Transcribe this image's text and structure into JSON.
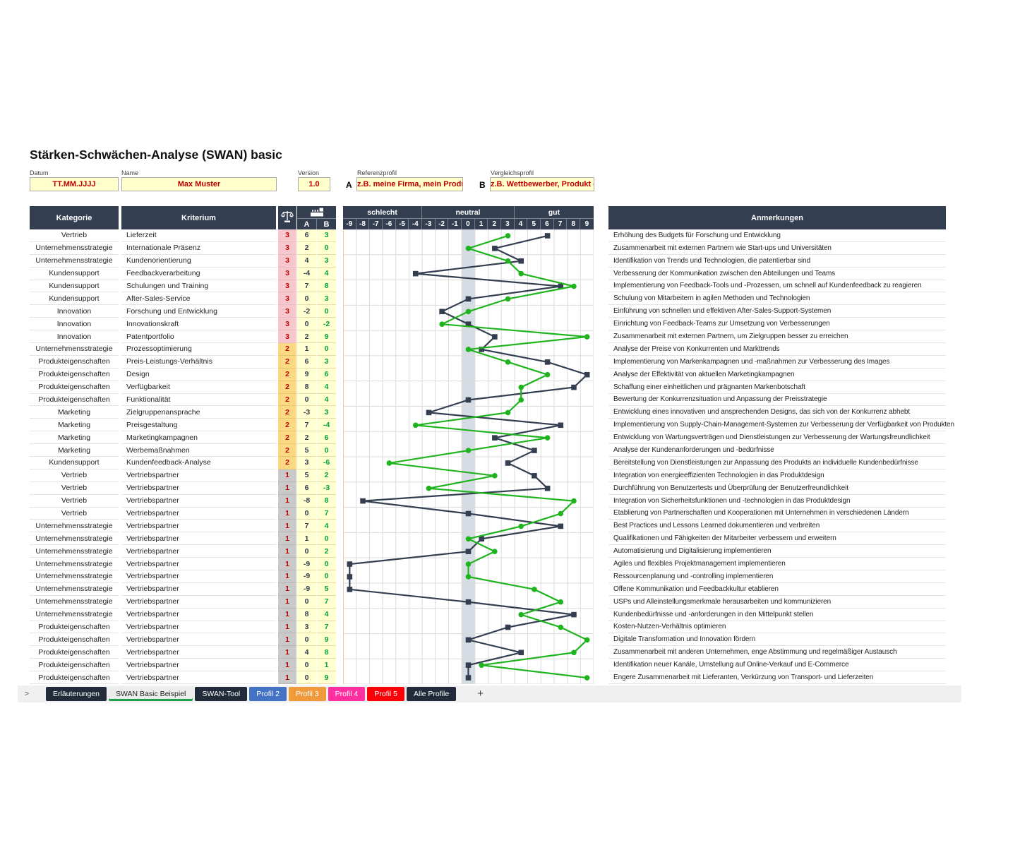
{
  "title": "Stärken-Schwächen-Analyse (SWAN) basic",
  "form": {
    "datum": {
      "label": "Datum",
      "value": "TT.MM.JJJJ"
    },
    "name": {
      "label": "Name",
      "value": "Max Muster"
    },
    "version": {
      "label": "Version",
      "value": "1.0"
    },
    "referenzprofil": {
      "label": "Referenzprofil",
      "prefix": "A",
      "value": "z.B. meine Firma, mein Produkt"
    },
    "vergleichsprofil": {
      "label": "Vergleichsprofil",
      "prefix": "B",
      "value": "z.B. Wettbewerber, Produkt etc."
    }
  },
  "table": {
    "headers": {
      "kategorie": "Kategorie",
      "kriterium": "Kriterium",
      "gewicht_icon": "balance-scale-icon",
      "profil_icon": "factory-icon",
      "a": "A",
      "b": "B",
      "anmerkungen": "Anmerkungen"
    },
    "scale": {
      "zones": [
        {
          "label": "schlecht",
          "cols": 6
        },
        {
          "label": "neutral",
          "cols": 7
        },
        {
          "label": "gut",
          "cols": 6
        }
      ],
      "ticks": [
        -9,
        -8,
        -7,
        -6,
        -5,
        -4,
        -3,
        -2,
        -1,
        0,
        1,
        2,
        3,
        4,
        5,
        6,
        7,
        8,
        9
      ]
    },
    "rows": [
      {
        "kategorie": "Vertrieb",
        "kriterium": "Lieferzeit",
        "gewicht": 3,
        "a": 6,
        "b": 3,
        "anmerkung": "Erhöhung des Budgets für Forschung und Entwicklung"
      },
      {
        "kategorie": "Unternehmensstrategie",
        "kriterium": "Internationale Präsenz",
        "gewicht": 3,
        "a": 2,
        "b": 0,
        "anmerkung": "Zusammenarbeit mit externen Partnern wie Start-ups und Universitäten"
      },
      {
        "kategorie": "Unternehmensstrategie",
        "kriterium": "Kundenorientierung",
        "gewicht": 3,
        "a": 4,
        "b": 3,
        "anmerkung": "Identifikation von Trends und Technologien, die patentierbar sind"
      },
      {
        "kategorie": "Kundensupport",
        "kriterium": "Feedbackverarbeitung",
        "gewicht": 3,
        "a": -4,
        "b": 4,
        "anmerkung": "Verbesserung der Kommunikation zwischen den Abteilungen und Teams"
      },
      {
        "kategorie": "Kundensupport",
        "kriterium": "Schulungen und Training",
        "gewicht": 3,
        "a": 7,
        "b": 8,
        "anmerkung": "Implementierung von Feedback-Tools und -Prozessen, um schnell auf Kundenfeedback zu reagieren"
      },
      {
        "kategorie": "Kundensupport",
        "kriterium": "After-Sales-Service",
        "gewicht": 3,
        "a": 0,
        "b": 3,
        "anmerkung": "Schulung von Mitarbeitern in agilen Methoden und Technologien"
      },
      {
        "kategorie": "Innovation",
        "kriterium": "Forschung und Entwicklung",
        "gewicht": 3,
        "a": -2,
        "b": 0,
        "anmerkung": "Einführung von schnellen und effektiven After-Sales-Support-Systemen"
      },
      {
        "kategorie": "Innovation",
        "kriterium": "Innovationskraft",
        "gewicht": 3,
        "a": 0,
        "b": -2,
        "anmerkung": "Einrichtung von Feedback-Teams zur Umsetzung von Verbesserungen"
      },
      {
        "kategorie": "Innovation",
        "kriterium": "Patentportfolio",
        "gewicht": 3,
        "a": 2,
        "b": 9,
        "anmerkung": "Zusammenarbeit mit externen Partnern, um Zielgruppen besser zu erreichen"
      },
      {
        "kategorie": "Unternehmensstrategie",
        "kriterium": "Prozessoptimierung",
        "gewicht": 2,
        "a": 1,
        "b": 0,
        "anmerkung": "Analyse der Preise von Konkurrenten und Markttrends"
      },
      {
        "kategorie": "Produkteigenschaften",
        "kriterium": "Preis-Leistungs-Verhältnis",
        "gewicht": 2,
        "a": 6,
        "b": 3,
        "anmerkung": "Implementierung von Markenkampagnen und -maßnahmen zur Verbesserung des Images"
      },
      {
        "kategorie": "Produkteigenschaften",
        "kriterium": "Design",
        "gewicht": 2,
        "a": 9,
        "b": 6,
        "anmerkung": "Analyse der Effektivität von aktuellen Marketingkampagnen"
      },
      {
        "kategorie": "Produkteigenschaften",
        "kriterium": "Verfügbarkeit",
        "gewicht": 2,
        "a": 8,
        "b": 4,
        "anmerkung": "Schaffung einer einheitlichen und prägnanten Markenbotschaft"
      },
      {
        "kategorie": "Produkteigenschaften",
        "kriterium": "Funktionalität",
        "gewicht": 2,
        "a": 0,
        "b": 4,
        "anmerkung": "Bewertung der Konkurrenzsituation und Anpassung der Preisstrategie"
      },
      {
        "kategorie": "Marketing",
        "kriterium": "Zielgruppenansprache",
        "gewicht": 2,
        "a": -3,
        "b": 3,
        "anmerkung": "Entwicklung eines innovativen und ansprechenden Designs, das sich von der Konkurrenz abhebt"
      },
      {
        "kategorie": "Marketing",
        "kriterium": "Preisgestaltung",
        "gewicht": 2,
        "a": 7,
        "b": -4,
        "anmerkung": "Implementierung von Supply-Chain-Management-Systemen zur Verbesserung der Verfügbarkeit von Produkten"
      },
      {
        "kategorie": "Marketing",
        "kriterium": "Marketingkampagnen",
        "gewicht": 2,
        "a": 2,
        "b": 6,
        "anmerkung": "Entwicklung von Wartungsverträgen und Dienstleistungen zur Verbesserung der Wartungsfreundlichkeit"
      },
      {
        "kategorie": "Marketing",
        "kriterium": "Werbemaßnahmen",
        "gewicht": 2,
        "a": 5,
        "b": 0,
        "anmerkung": "Analyse der Kundenanforderungen und -bedürfnisse"
      },
      {
        "kategorie": "Kundensupport",
        "kriterium": "Kundenfeedback-Analyse",
        "gewicht": 2,
        "a": 3,
        "b": -6,
        "anmerkung": "Bereitstellung von Dienstleistungen zur Anpassung des Produkts an individuelle Kundenbedürfnisse"
      },
      {
        "kategorie": "Vertrieb",
        "kriterium": "Vertriebspartner",
        "gewicht": 1,
        "a": 5,
        "b": 2,
        "anmerkung": "Integration von energieeffizienten Technologien in das Produktdesign"
      },
      {
        "kategorie": "Vertrieb",
        "kriterium": "Vertriebspartner",
        "gewicht": 1,
        "a": 6,
        "b": -3,
        "anmerkung": "Durchführung von Benutzertests und Überprüfung der Benutzerfreundlichkeit"
      },
      {
        "kategorie": "Vertrieb",
        "kriterium": "Vertriebspartner",
        "gewicht": 1,
        "a": -8,
        "b": 8,
        "anmerkung": "Integration von Sicherheitsfunktionen und -technologien in das Produktdesign"
      },
      {
        "kategorie": "Vertrieb",
        "kriterium": "Vertriebspartner",
        "gewicht": 1,
        "a": 0,
        "b": 7,
        "anmerkung": "Etablierung von Partnerschaften und Kooperationen mit Unternehmen in verschiedenen Ländern"
      },
      {
        "kategorie": "Unternehmensstrategie",
        "kriterium": "Vertriebspartner",
        "gewicht": 1,
        "a": 7,
        "b": 4,
        "anmerkung": "Best Practices und Lessons Learned dokumentieren und verbreiten"
      },
      {
        "kategorie": "Unternehmensstrategie",
        "kriterium": "Vertriebspartner",
        "gewicht": 1,
        "a": 1,
        "b": 0,
        "anmerkung": "Qualifikationen und Fähigkeiten der Mitarbeiter verbessern und erweitern"
      },
      {
        "kategorie": "Unternehmensstrategie",
        "kriterium": "Vertriebspartner",
        "gewicht": 1,
        "a": 0,
        "b": 2,
        "anmerkung": "Automatisierung und Digitalisierung implementieren"
      },
      {
        "kategorie": "Unternehmensstrategie",
        "kriterium": "Vertriebspartner",
        "gewicht": 1,
        "a": -9,
        "b": 0,
        "anmerkung": "Agiles und flexibles Projektmanagement implementieren"
      },
      {
        "kategorie": "Unternehmensstrategie",
        "kriterium": "Vertriebspartner",
        "gewicht": 1,
        "a": -9,
        "b": 0,
        "anmerkung": "Ressourcenplanung und -controlling implementieren"
      },
      {
        "kategorie": "Unternehmensstrategie",
        "kriterium": "Vertriebspartner",
        "gewicht": 1,
        "a": -9,
        "b": 5,
        "anmerkung": "Offene Kommunikation und Feedbackkultur etablieren"
      },
      {
        "kategorie": "Unternehmensstrategie",
        "kriterium": "Vertriebspartner",
        "gewicht": 1,
        "a": 0,
        "b": 7,
        "anmerkung": "USPs und Alleinstellungsmerkmale herausarbeiten und kommunizieren"
      },
      {
        "kategorie": "Unternehmensstrategie",
        "kriterium": "Vertriebspartner",
        "gewicht": 1,
        "a": 8,
        "b": 4,
        "anmerkung": "Kundenbedürfnisse und -anforderungen in den Mittelpunkt stellen"
      },
      {
        "kategorie": "Produkteigenschaften",
        "kriterium": "Vertriebspartner",
        "gewicht": 1,
        "a": 3,
        "b": 7,
        "anmerkung": "Kosten-Nutzen-Verhältnis optimieren"
      },
      {
        "kategorie": "Produkteigenschaften",
        "kriterium": "Vertriebspartner",
        "gewicht": 1,
        "a": 0,
        "b": 9,
        "anmerkung": "Digitale Transformation und Innovation fördern"
      },
      {
        "kategorie": "Produkteigenschaften",
        "kriterium": "Vertriebspartner",
        "gewicht": 1,
        "a": 4,
        "b": 8,
        "anmerkung": "Zusammenarbeit mit anderen Unternehmen, enge Abstimmung und regelmäßiger Austausch"
      },
      {
        "kategorie": "Produkteigenschaften",
        "kriterium": "Vertriebspartner",
        "gewicht": 1,
        "a": 0,
        "b": 1,
        "anmerkung": "Identifikation neuer Kanäle, Umstellung auf Online-Verkauf und E-Commerce"
      },
      {
        "kategorie": "Produkteigenschaften",
        "kriterium": "Vertriebspartner",
        "gewicht": 1,
        "a": 0,
        "b": 9,
        "anmerkung": "Engere Zusammenarbeit mit Lieferanten, Verkürzung von Transport- und Lieferzeiten"
      }
    ]
  },
  "chart_data": {
    "type": "line",
    "orientation": "horizontal-rows",
    "x_range": [
      -9,
      9
    ],
    "zones": [
      {
        "label": "schlecht",
        "range": [
          -9,
          -4
        ]
      },
      {
        "label": "neutral",
        "range": [
          -3,
          3
        ]
      },
      {
        "label": "gut",
        "range": [
          4,
          9
        ]
      }
    ],
    "series": [
      {
        "name": "A",
        "marker": "square",
        "color": "#333F50",
        "values": [
          6,
          2,
          4,
          -4,
          7,
          0,
          -2,
          0,
          2,
          1,
          6,
          9,
          8,
          0,
          -3,
          7,
          2,
          5,
          3,
          5,
          6,
          -8,
          0,
          7,
          1,
          0,
          -9,
          -9,
          -9,
          0,
          8,
          3,
          0,
          4,
          0,
          0
        ]
      },
      {
        "name": "B",
        "marker": "circle",
        "color": "#1FB41E",
        "values": [
          3,
          0,
          3,
          4,
          8,
          3,
          0,
          -2,
          9,
          0,
          3,
          6,
          4,
          4,
          3,
          -4,
          6,
          0,
          -6,
          2,
          -3,
          8,
          7,
          4,
          0,
          2,
          0,
          0,
          5,
          7,
          4,
          7,
          9,
          8,
          1,
          9
        ]
      }
    ]
  },
  "tab_bar": {
    "nav_arrow": ">",
    "add_label": "+",
    "tabs": [
      {
        "label": "Erläuterungen",
        "bg": "#222B3A",
        "fg": "#FFFFFF",
        "active": false
      },
      {
        "label": "SWAN Basic Beispiel",
        "bg": "#ECECEC",
        "fg": "#1F1F1F",
        "active": true
      },
      {
        "label": "SWAN-Tool",
        "bg": "#222B3A",
        "fg": "#FFFFFF",
        "active": false
      },
      {
        "label": "Profil 2",
        "bg": "#4472C4",
        "fg": "#FFFFFF",
        "active": false
      },
      {
        "label": "Profil 3",
        "bg": "#F09A3C",
        "fg": "#FFFFFF",
        "active": false
      },
      {
        "label": "Profil 4",
        "bg": "#FF2FA0",
        "fg": "#FFFFFF",
        "active": false
      },
      {
        "label": "Profil 5",
        "bg": "#FB0007",
        "fg": "#FFFFFF",
        "active": false
      },
      {
        "label": "Alle Profile",
        "bg": "#222B3A",
        "fg": "#FFFFFF",
        "active": false
      }
    ]
  },
  "colors": {
    "header_bg": "#333F50",
    "weight3_bg": "#F6C7CC",
    "weight2_bg": "#FBD982",
    "weight1_bg": "#C9C9C9",
    "weight_text": "#C00000",
    "score_bg": "#FFFFD2",
    "score_a_text": "#333F50",
    "score_b_text": "#00A33C",
    "input_bg": "#FFFFCC",
    "input_text": "#C00000",
    "series_a": "#333F50",
    "series_b": "#1FB41E",
    "zero_band": "#D6DCE4",
    "grid": "#DBDBDB",
    "chart_edge": "#F2CEA5",
    "tab_strip_bg": "#F0F0F0",
    "active_tab_underline": "#21A04B"
  }
}
